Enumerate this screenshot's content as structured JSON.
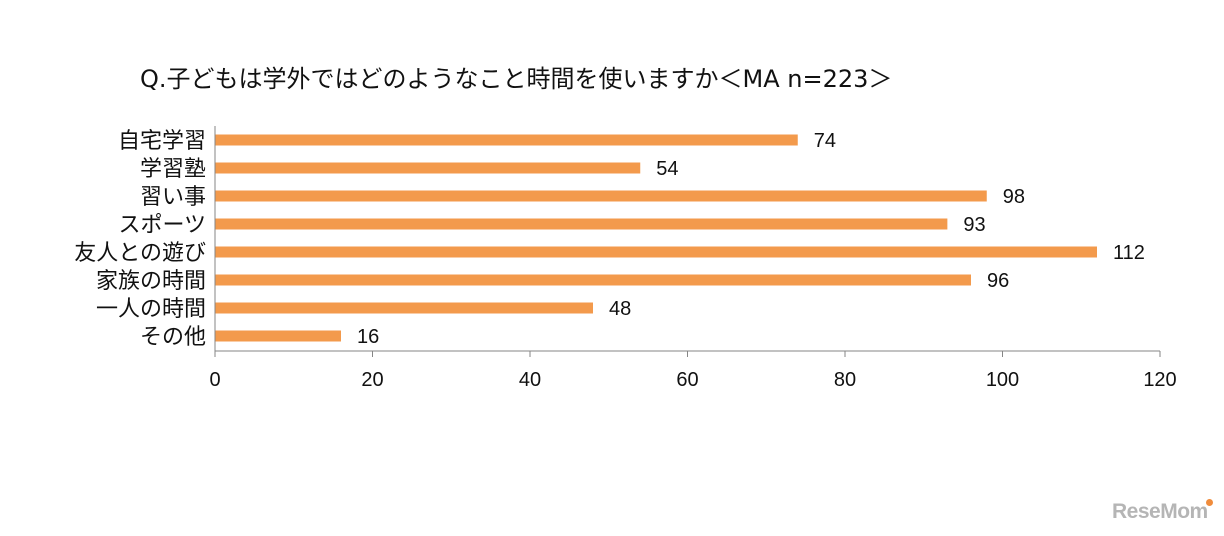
{
  "chart_data": {
    "type": "bar",
    "orientation": "horizontal",
    "title": "Q.子どもは学外ではどのようなこと時間を使いますか＜MA n=223＞",
    "categories": [
      "自宅学習",
      "学習塾",
      "習い事",
      "スポーツ",
      "友人との遊び",
      "家族の時間",
      "一人の時間",
      "その他"
    ],
    "values": [
      74,
      54,
      98,
      93,
      112,
      96,
      48,
      16
    ],
    "xlim": [
      0,
      120
    ],
    "xticks": [
      0,
      20,
      40,
      60,
      80,
      100,
      120
    ],
    "grid": false,
    "legend": "none",
    "bar_color": "#f39a4c"
  },
  "logo": {
    "text": "ReseMom"
  }
}
